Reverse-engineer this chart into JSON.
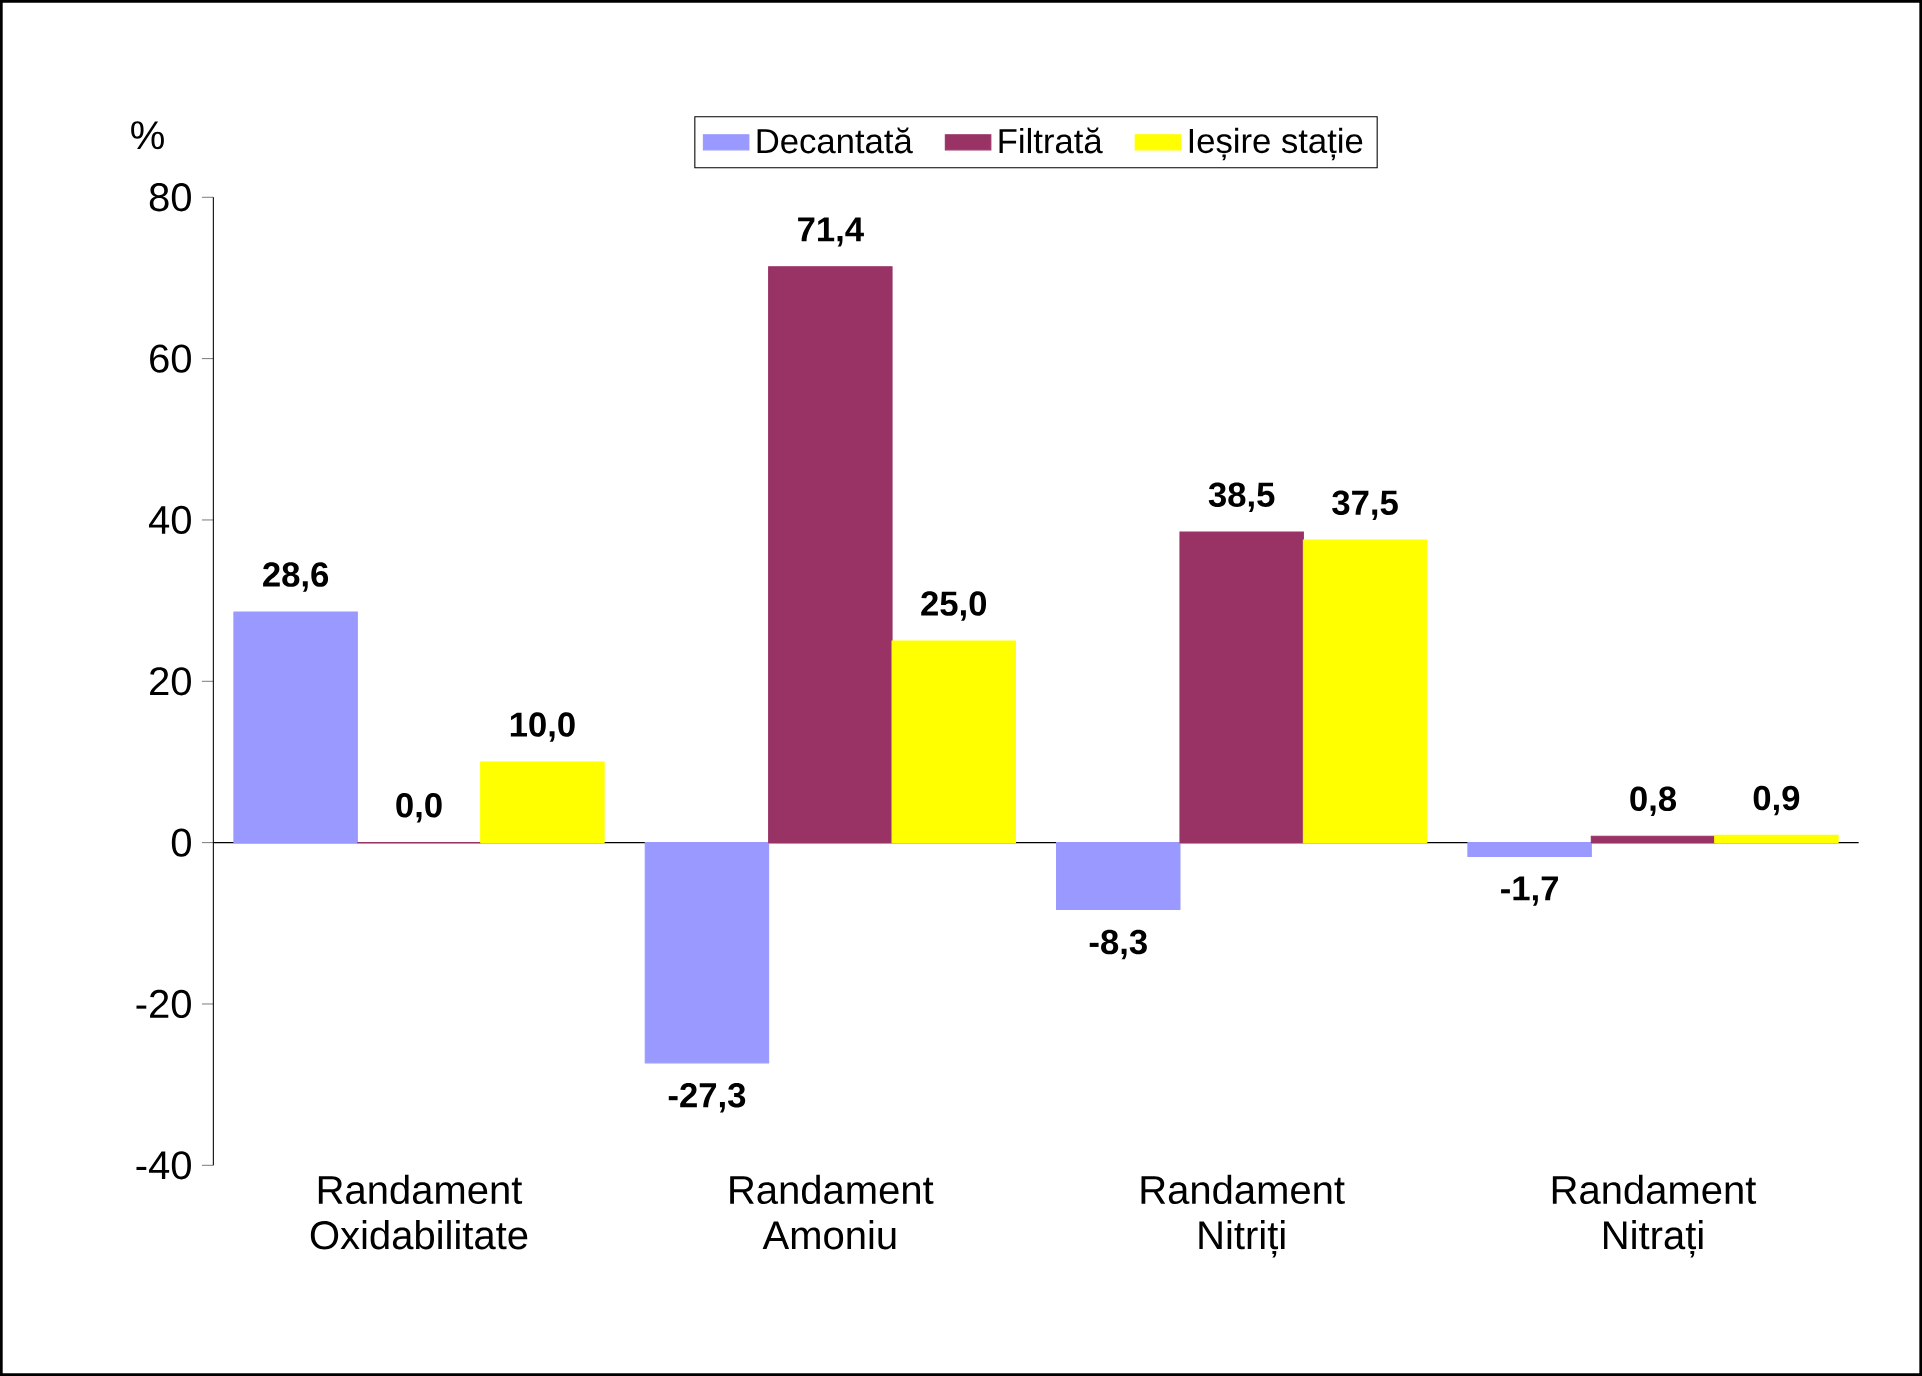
{
  "chart_data": {
    "type": "bar",
    "ylabel": "%",
    "categories": [
      "Randament Oxidabilitate",
      "Randament Amoniu",
      "Randament Nitriți",
      "Randament Nitrați"
    ],
    "series": [
      {
        "name": "Decantată",
        "color": "#9999ff",
        "values": [
          28.6,
          -27.3,
          -8.3,
          -1.7
        ],
        "value_labels": [
          "28,6",
          "-27,3",
          "-8,3",
          "-1,7"
        ]
      },
      {
        "name": "Filtrată",
        "color": "#993366",
        "values": [
          0.0,
          71.4,
          38.5,
          0.8
        ],
        "value_labels": [
          "0,0",
          "71,4",
          "38,5",
          "0,8"
        ]
      },
      {
        "name": "Ieșire stație",
        "color": "#ffff00",
        "values": [
          10.0,
          25.0,
          37.5,
          0.9
        ],
        "value_labels": [
          "10,0",
          "25,0",
          "37,5",
          "0,9"
        ]
      }
    ],
    "ylim": [
      -40,
      80
    ],
    "yticks": [
      -40,
      -20,
      0,
      20,
      40,
      60,
      80
    ],
    "legend": "top"
  }
}
